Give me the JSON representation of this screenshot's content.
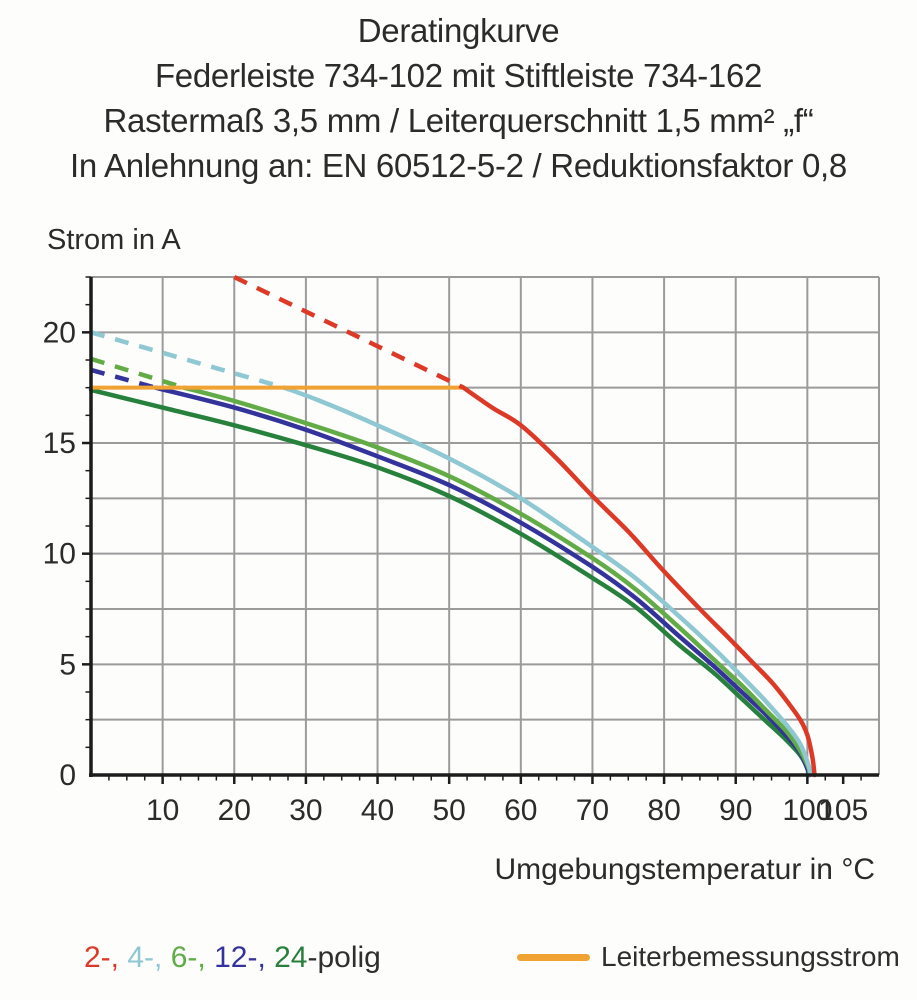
{
  "header": {
    "lines": [
      "Deratingkurve",
      "Federleiste 734-102 mit Stiftleiste 734-162",
      "Rastermaß 3,5 mm / Leiterquerschnitt 1,5 mm² „f“",
      "In Anlehnung an: EN 60512-5-2 / Reduktionsfaktor 0,8"
    ]
  },
  "chart_data": {
    "type": "line",
    "title": "Deratingkurve",
    "y_axis": {
      "label": "Strom in A",
      "range": [
        0,
        22.5
      ],
      "ticks": [
        0,
        5,
        10,
        15,
        20
      ],
      "minor_tick_step": 1.25,
      "grid_step": 2.5
    },
    "x_axis": {
      "label": "Umgebungstemperatur in °C",
      "range": [
        0,
        110
      ],
      "ticks": [
        10,
        20,
        30,
        40,
        50,
        60,
        70,
        80,
        90,
        100,
        105
      ],
      "minor_tick_step": 2.5,
      "grid_step": 10,
      "grid_max": 100
    },
    "grid_color": "#9b9b9b",
    "axis_color": "#1c1c1c",
    "reference_line": {
      "label": "Leiterbemessungsstrom",
      "color": "#f0a232",
      "current_a": 17.5,
      "x_start": 0,
      "x_end": 52
    },
    "series": [
      {
        "name": "24-polig",
        "color": "#27803c",
        "dashed": [],
        "solid": [
          [
            0,
            17.4
          ],
          [
            10,
            16.6
          ],
          [
            20,
            15.8
          ],
          [
            30,
            14.9
          ],
          [
            40,
            13.9
          ],
          [
            50,
            12.6
          ],
          [
            60,
            10.9
          ],
          [
            70,
            8.9
          ],
          [
            76,
            7.6
          ],
          [
            82,
            5.9
          ],
          [
            87,
            4.6
          ],
          [
            91,
            3.4
          ],
          [
            94,
            2.5
          ],
          [
            97,
            1.6
          ],
          [
            99,
            0.9
          ],
          [
            100,
            0.3
          ],
          [
            100.1,
            0
          ]
        ]
      },
      {
        "name": "12-polig",
        "color": "#34339b",
        "dashed": [
          [
            0,
            18.3
          ],
          [
            9,
            17.5
          ]
        ],
        "solid": [
          [
            9,
            17.5
          ],
          [
            20,
            16.6
          ],
          [
            30,
            15.6
          ],
          [
            40,
            14.4
          ],
          [
            50,
            13.1
          ],
          [
            60,
            11.4
          ],
          [
            70,
            9.4
          ],
          [
            76,
            8.0
          ],
          [
            82,
            6.3
          ],
          [
            87,
            4.9
          ],
          [
            91,
            3.7
          ],
          [
            94,
            2.8
          ],
          [
            97,
            1.8
          ],
          [
            99,
            1.0
          ],
          [
            100.1,
            0.2
          ],
          [
            100.2,
            0
          ]
        ]
      },
      {
        "name": "6-polig",
        "color": "#62ab46",
        "dashed": [
          [
            0,
            18.8
          ],
          [
            13,
            17.5
          ]
        ],
        "solid": [
          [
            13,
            17.5
          ],
          [
            20,
            16.9
          ],
          [
            30,
            15.9
          ],
          [
            40,
            14.8
          ],
          [
            50,
            13.5
          ],
          [
            60,
            11.8
          ],
          [
            70,
            9.8
          ],
          [
            76,
            8.4
          ],
          [
            82,
            6.7
          ],
          [
            87,
            5.2
          ],
          [
            91,
            4.0
          ],
          [
            94,
            3.0
          ],
          [
            97,
            2.0
          ],
          [
            99,
            1.1
          ],
          [
            100.2,
            0.3
          ],
          [
            100.3,
            0
          ]
        ]
      },
      {
        "name": "4-polig",
        "color": "#8fc8d2",
        "dashed": [
          [
            0,
            20.0
          ],
          [
            27,
            17.5
          ]
        ],
        "solid": [
          [
            27,
            17.5
          ],
          [
            32,
            16.9
          ],
          [
            40,
            15.8
          ],
          [
            50,
            14.3
          ],
          [
            60,
            12.5
          ],
          [
            70,
            10.3
          ],
          [
            76,
            8.9
          ],
          [
            82,
            7.2
          ],
          [
            87,
            5.7
          ],
          [
            91,
            4.4
          ],
          [
            94,
            3.4
          ],
          [
            97,
            2.3
          ],
          [
            99,
            1.4
          ],
          [
            100.2,
            0.4
          ],
          [
            100.4,
            0
          ]
        ]
      },
      {
        "name": "2-polig",
        "color": "#dc3a27",
        "dashed": [
          [
            20,
            22.5
          ],
          [
            52,
            17.5
          ]
        ],
        "solid": [
          [
            52,
            17.5
          ],
          [
            56,
            16.6
          ],
          [
            60,
            15.8
          ],
          [
            65,
            14.3
          ],
          [
            70,
            12.6
          ],
          [
            75,
            11.0
          ],
          [
            80,
            9.2
          ],
          [
            85,
            7.5
          ],
          [
            89,
            6.2
          ],
          [
            92,
            5.2
          ],
          [
            95,
            4.2
          ],
          [
            97,
            3.4
          ],
          [
            99,
            2.5
          ],
          [
            100,
            1.8
          ],
          [
            100.7,
            0.8
          ],
          [
            101,
            0
          ]
        ]
      }
    ]
  },
  "legend": {
    "pole_items": [
      {
        "text": "2-,",
        "color": "#dc3a27"
      },
      {
        "text": "4-,",
        "color": "#8fc8d2"
      },
      {
        "text": "6-,",
        "color": "#62ab46"
      },
      {
        "text": "12-,",
        "color": "#34339b"
      },
      {
        "text": "24",
        "color": "#27803c"
      }
    ],
    "suffix": "-polig",
    "suffix_color": "#2e2e2e",
    "reference_label": "Leiterbemessungsstrom"
  }
}
